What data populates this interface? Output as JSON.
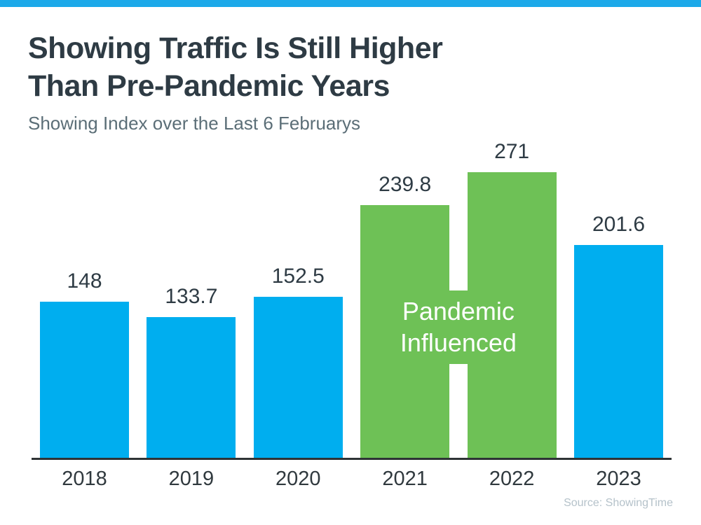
{
  "page": {
    "background": "#FFFFFF",
    "accent_stripe_color": "#1CA9E9"
  },
  "header": {
    "title_lines": [
      "Showing Traffic Is Still Higher",
      "Than Pre-Pandemic Years"
    ],
    "title_color": "#2E3B44",
    "subtitle": "Showing Index over the Last 6 Februarys",
    "subtitle_color": "#5B6E77"
  },
  "chart_data": {
    "type": "bar",
    "title": "Showing Traffic Is Still Higher Than Pre-Pandemic Years",
    "subtitle": "Showing Index over the Last 6 Februarys",
    "categories": [
      "2018",
      "2019",
      "2020",
      "2021",
      "2022",
      "2023"
    ],
    "values": [
      148,
      133.7,
      152.5,
      239.8,
      271,
      201.6
    ],
    "value_labels": [
      "148",
      "133.7",
      "152.5",
      "239.8",
      "271",
      "201.6"
    ],
    "bar_colors": [
      "#00AEEF",
      "#00AEEF",
      "#00AEEF",
      "#6EC156",
      "#6EC156",
      "#00AEEF"
    ],
    "blue_color": "#00AEEF",
    "green_color": "#6EC156",
    "highlight": {
      "label_lines": [
        "Pandemic",
        "Influenced"
      ],
      "applies_to": [
        "2021",
        "2022"
      ],
      "color": "#6EC156",
      "text_color": "#FFFFFF"
    },
    "ylim": [
      0,
      271
    ],
    "xlabel": "",
    "ylabel": "",
    "grid": false,
    "legend": false,
    "axis_color": "#2E3335",
    "value_label_color": "#2E3B44",
    "tick_label_color": "#30393E"
  },
  "footer": {
    "source": "Source: ShowingTime",
    "source_color": "#B5C2CA"
  }
}
